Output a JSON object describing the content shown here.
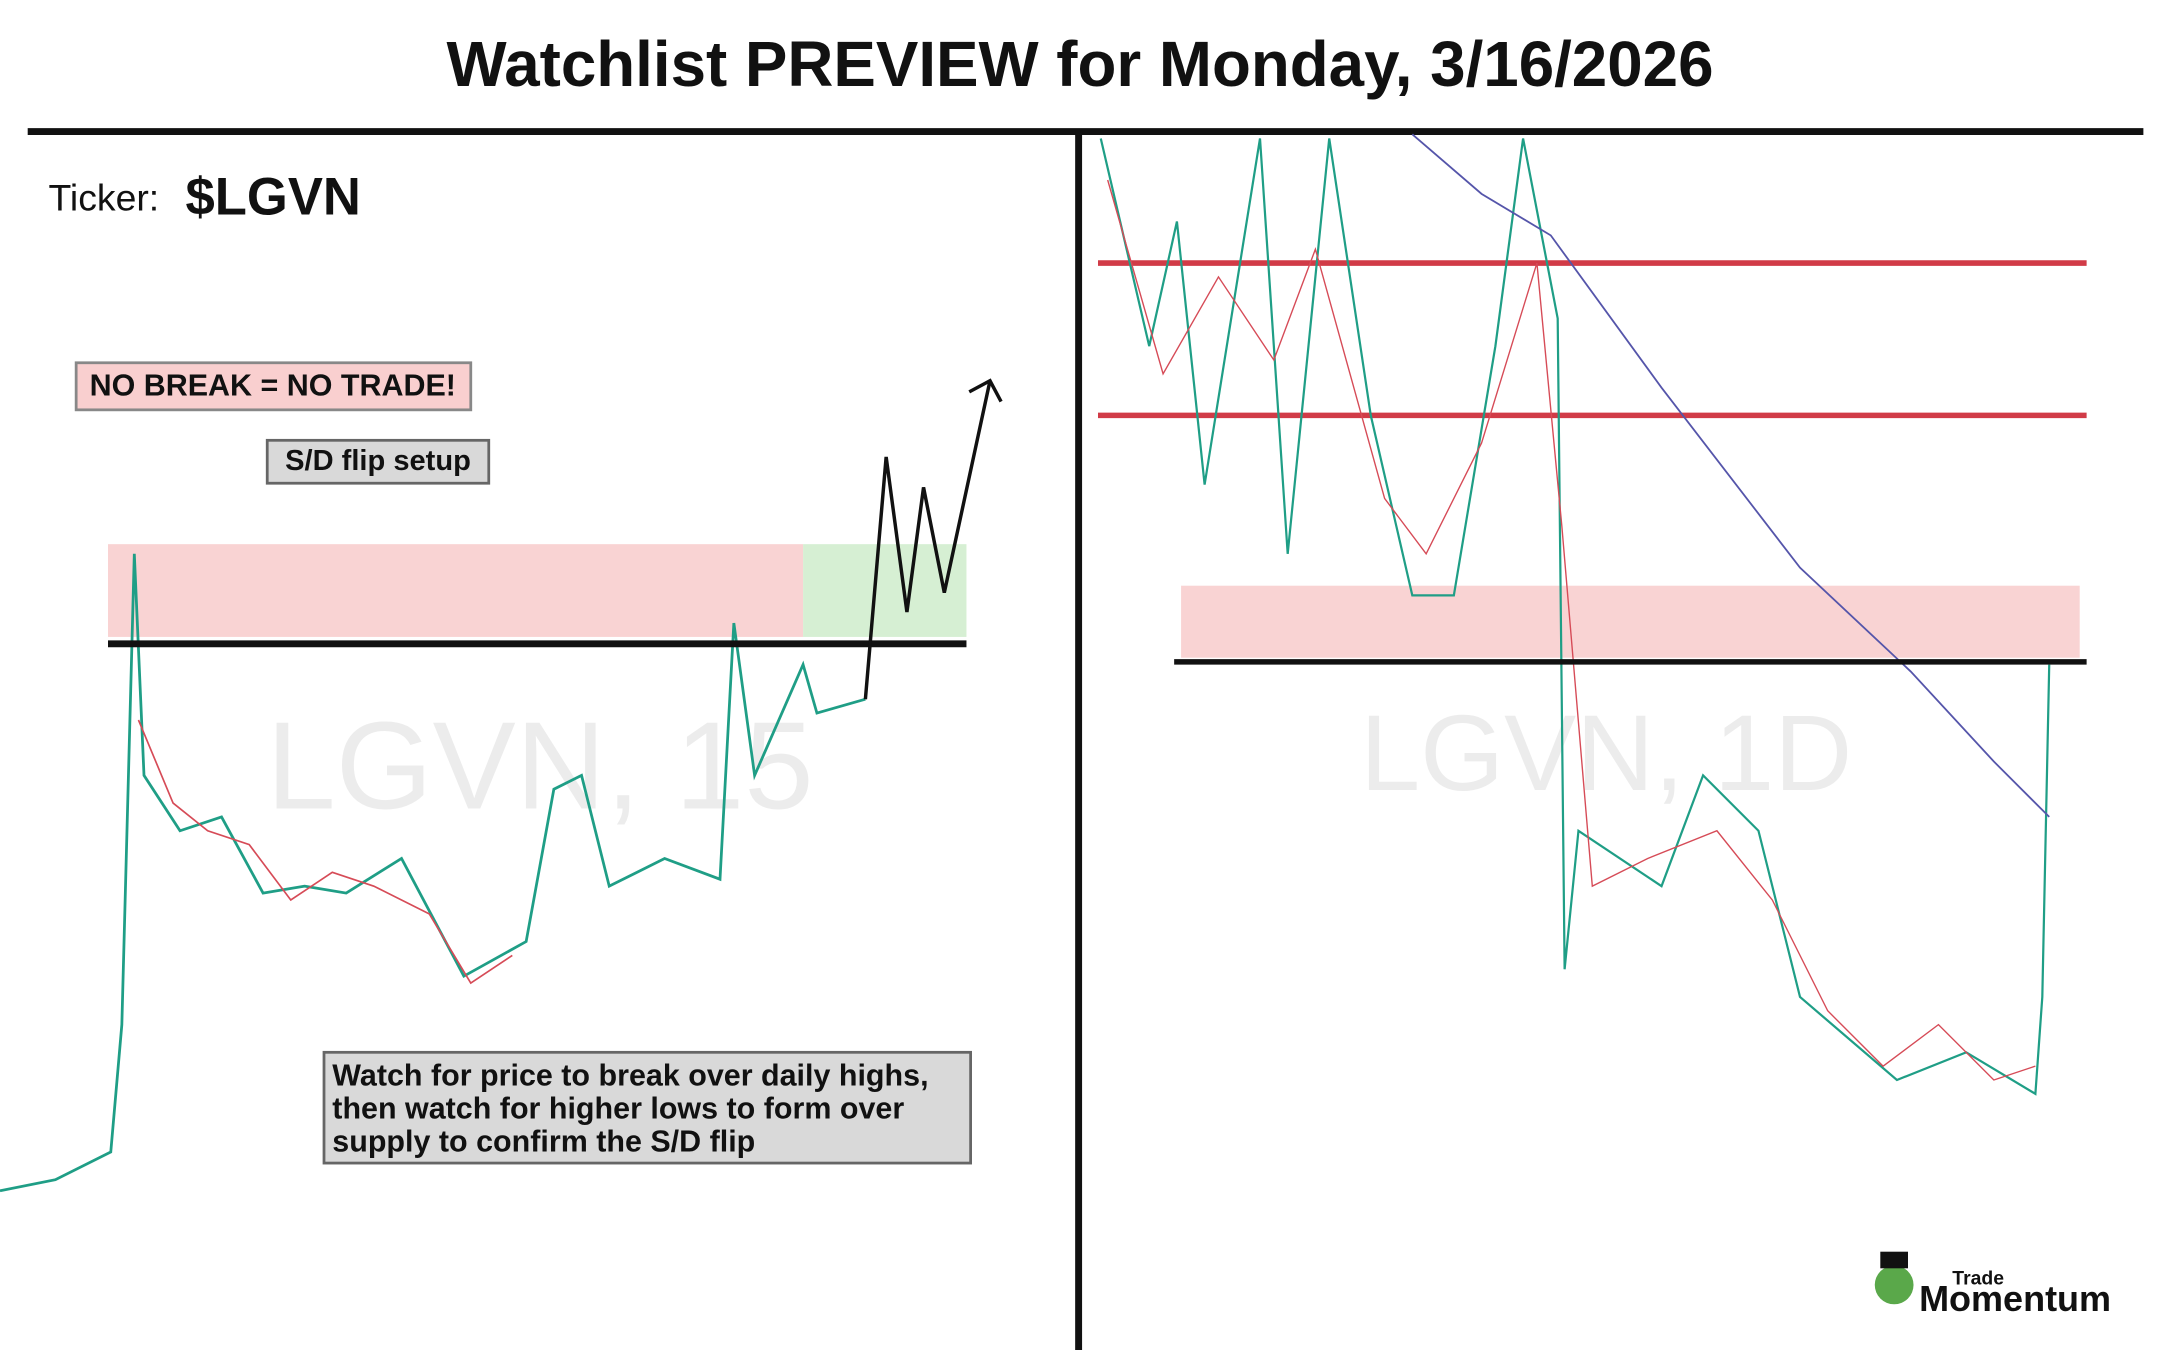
{
  "header": {
    "title": "Watchlist PREVIEW for Monday, 3/16/2026"
  },
  "ticker": {
    "label": "Ticker:",
    "symbol": "$LGVN"
  },
  "left_panel": {
    "warning": "NO BREAK = NO TRADE!",
    "setup": "S/D flip setup",
    "watermark": "LGVN, 15",
    "note": {
      "lines": [
        "Watch for price to break over daily highs,",
        "then watch for higher lows to form over",
        "supply to confirm the S/D flip"
      ]
    }
  },
  "right_panel": {
    "watermark": "LGVN, 1D"
  },
  "logo": {
    "top": "Trade",
    "bottom": "Momentum"
  }
}
